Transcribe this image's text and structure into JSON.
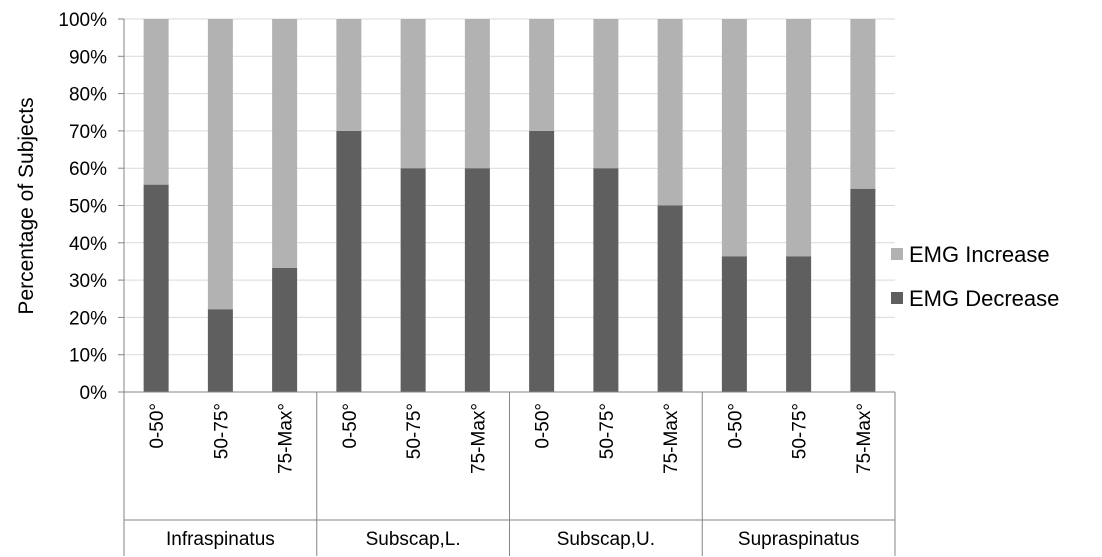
{
  "chart_data": {
    "type": "bar",
    "stacked": true,
    "percent_stacked": true,
    "ylabel": "Percentage of Subjects",
    "ylim": [
      0,
      100
    ],
    "y_ticks": [
      "0%",
      "10%",
      "20%",
      "30%",
      "40%",
      "50%",
      "60%",
      "70%",
      "80%",
      "90%",
      "100%"
    ],
    "grid": true,
    "legend_position": "right",
    "groups": [
      {
        "name": "Infraspinatus",
        "categories": [
          "0-50°",
          "50-75°",
          "75-Max°"
        ]
      },
      {
        "name": "Subscap,L.",
        "categories": [
          "0-50°",
          "50-75°",
          "75-Max°"
        ]
      },
      {
        "name": "Subscap,U.",
        "categories": [
          "0-50°",
          "50-75°",
          "75-Max°"
        ]
      },
      {
        "name": "Supraspinatus",
        "categories": [
          "0-50°",
          "50-75°",
          "75-Max°"
        ]
      }
    ],
    "series": [
      {
        "name": "EMG Decrease",
        "color": "#5f5f5f",
        "values": [
          55.6,
          22.2,
          33.3,
          70,
          60,
          60,
          70,
          60,
          50,
          36.4,
          36.4,
          54.5
        ]
      },
      {
        "name": "EMG Increase",
        "color": "#b2b2b2",
        "values": [
          44.4,
          77.8,
          66.7,
          30,
          40,
          40,
          30,
          40,
          50,
          63.6,
          63.6,
          45.5
        ]
      }
    ],
    "legend_order": [
      "EMG Increase",
      "EMG Decrease"
    ]
  }
}
